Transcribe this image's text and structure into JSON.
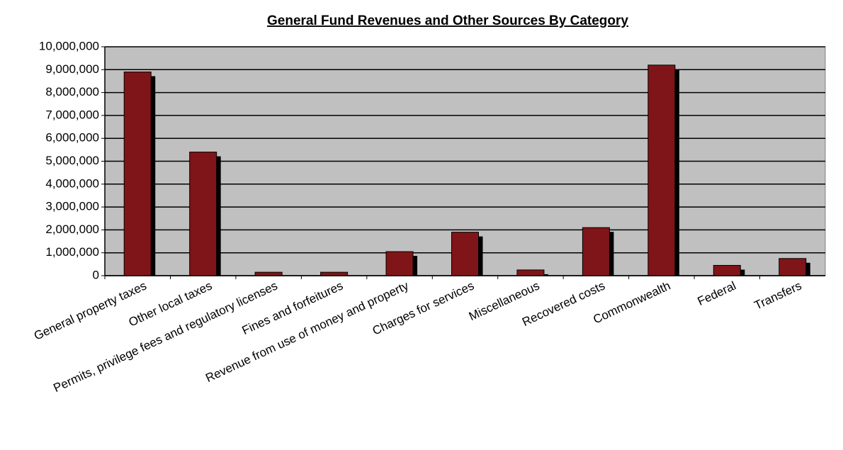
{
  "chart_data": {
    "type": "bar",
    "title": "General Fund Revenues and Other Sources By Category",
    "categories": [
      "General property taxes",
      "Other local taxes",
      "Permits, privilege fees and regulatory licenses",
      "Fines and forfeitures",
      "Revenue from use of money and property",
      "Charges for services",
      "Miscellaneous",
      "Recovered costs",
      "Commonwealth",
      "Federal",
      "Transfers"
    ],
    "values": [
      8900000,
      5400000,
      150000,
      150000,
      1050000,
      1900000,
      250000,
      2100000,
      9200000,
      450000,
      750000
    ],
    "color": "#7f1518",
    "ylim": [
      0,
      10000000
    ],
    "yticks": [
      {
        "value": 0,
        "label": "0"
      },
      {
        "value": 1000000,
        "label": "1,000,000"
      },
      {
        "value": 2000000,
        "label": "2,000,000"
      },
      {
        "value": 3000000,
        "label": "3,000,000"
      },
      {
        "value": 4000000,
        "label": "4,000,000"
      },
      {
        "value": 5000000,
        "label": "5,000,000"
      },
      {
        "value": 6000000,
        "label": "6,000,000"
      },
      {
        "value": 7000000,
        "label": "7,000,000"
      },
      {
        "value": 8000000,
        "label": "8,000,000"
      },
      {
        "value": 9000000,
        "label": "9,000,000"
      },
      {
        "value": 10000000,
        "label": "10,000,000"
      }
    ],
    "grid": true
  }
}
